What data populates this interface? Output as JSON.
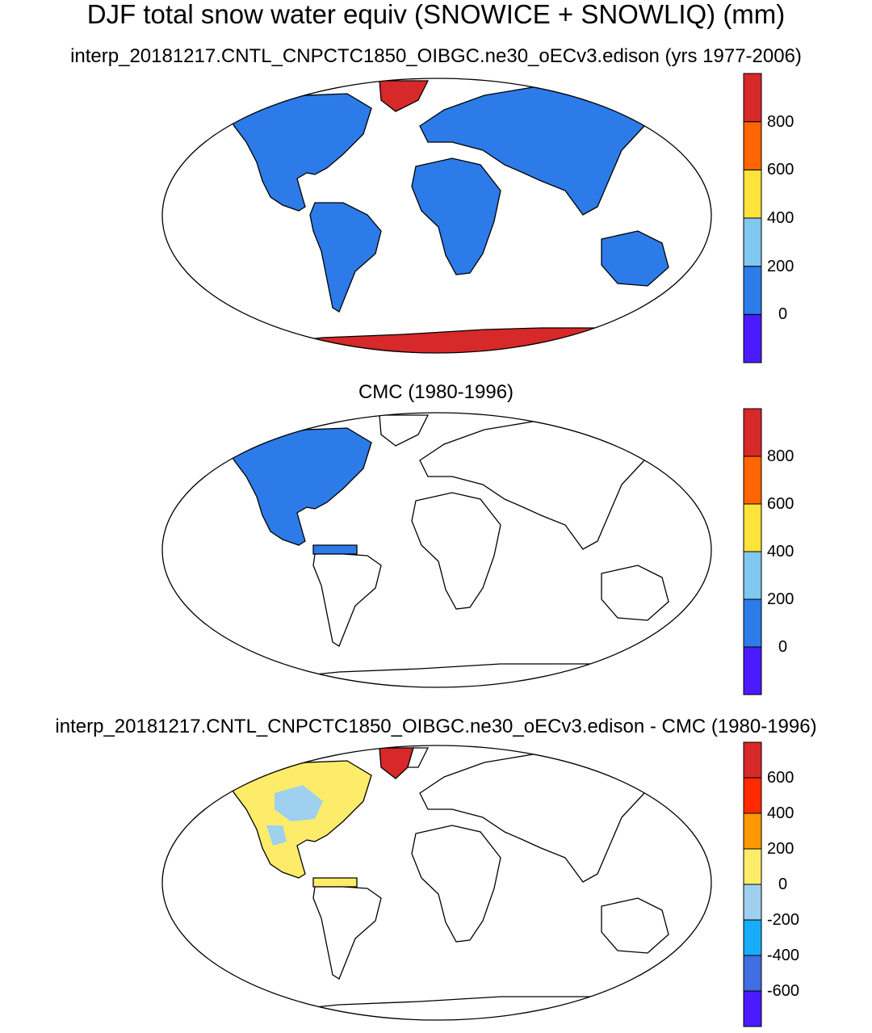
{
  "title": "DJF total snow water equiv (SNOWICE + SNOWLIQ) (mm)",
  "panels": [
    {
      "title": "interp_20181217.CNTL_CNPCTC1850_OIBGC.ne30_oECv3.edison (yrs 1977-2006)",
      "colorbar": {
        "colors": [
          "#4b1aff",
          "#2c7be8",
          "#80c8ef",
          "#fce43a",
          "#ff6500",
          "#d7282a"
        ],
        "tick_labels": [
          "0",
          "200",
          "400",
          "600",
          "800"
        ]
      },
      "land_color": "#2c7be8",
      "greenland_color": "#d7282a",
      "antarctica_color": "#d7282a"
    },
    {
      "title": "CMC (1980-1996)",
      "colorbar": {
        "colors": [
          "#4b1aff",
          "#2c7be8",
          "#80c8ef",
          "#fce43a",
          "#ff6500",
          "#d7282a"
        ],
        "tick_labels": [
          "0",
          "200",
          "400",
          "600",
          "800"
        ]
      },
      "north_america_color": "#2c7be8"
    },
    {
      "title": "interp_20181217.CNTL_CNPCTC1850_OIBGC.ne30_oECv3.edison - CMC (1980-1996)",
      "colorbar": {
        "colors": [
          "#4b1aff",
          "#3f6fe0",
          "#17adf8",
          "#9fd0ef",
          "#fcec6a",
          "#ff9900",
          "#ff2a00",
          "#d7282a"
        ],
        "tick_labels": [
          "-600",
          "-400",
          "-200",
          "0",
          "200",
          "400",
          "600"
        ]
      },
      "north_america_color": "#fcec6a",
      "north_america_patch_color": "#9fd0ef",
      "greenland_color": "#d7282a"
    }
  ]
}
